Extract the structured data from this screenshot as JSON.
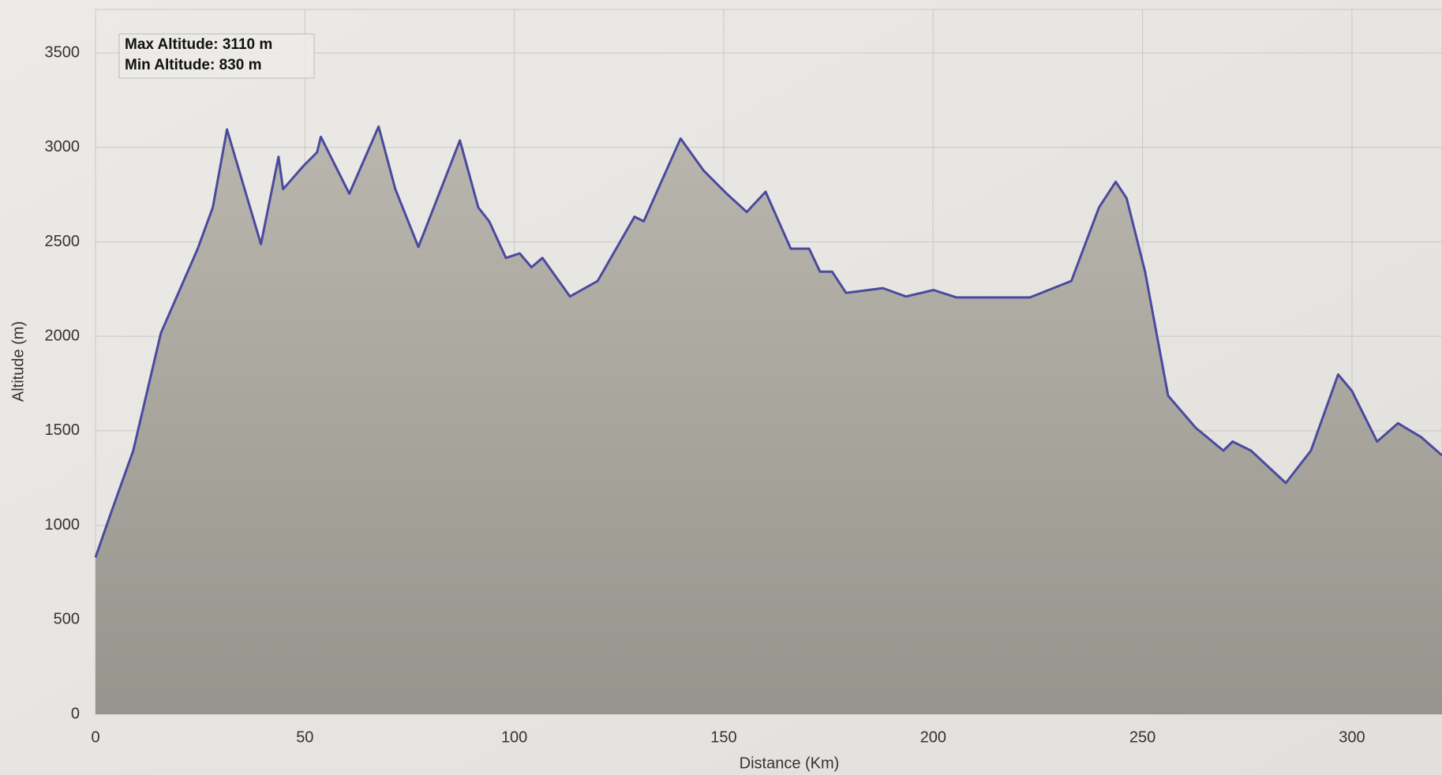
{
  "chart_data": {
    "type": "area-line",
    "xlabel": "Distance (Km)",
    "ylabel": "Altitude (m)",
    "annotations": [
      "Max Altitude: 3110 m",
      "Min Altitude: 830 m"
    ],
    "x": [
      0,
      3.5,
      9,
      15.6,
      24.4,
      28,
      31.4,
      34.3,
      39.5,
      43.7,
      44.8,
      49.6,
      52.9,
      53.8,
      56.2,
      60.6,
      67.6,
      71.6,
      77.1,
      87,
      91.4,
      94,
      98,
      101.3,
      104.1,
      106.7,
      113.3,
      119.9,
      128.7,
      130.9,
      139.7,
      145.2,
      150.7,
      155.5,
      160,
      166,
      170.4,
      173,
      175.9,
      179.2,
      188,
      193.5,
      200.1,
      205.6,
      223.1,
      233,
      239.6,
      243.6,
      246.2,
      250.6,
      256.1,
      262.7,
      269.3,
      271.5,
      275.9,
      284.2,
      290.2,
      296.7,
      300,
      306,
      311,
      316.5,
      321.5
    ],
    "series": [
      {
        "color": "#4a4a9e",
        "values": [
          830,
          1054,
          1395,
          2017,
          2464,
          2682,
          3095,
          2877,
          2488,
          2950,
          2779,
          2901,
          2974,
          3056,
          2950,
          2755,
          3110,
          2779,
          2473,
          3037,
          2682,
          2609,
          2415,
          2439,
          2366,
          2415,
          2211,
          2293,
          2633,
          2609,
          3047,
          2877,
          2755,
          2658,
          2765,
          2464,
          2464,
          2342,
          2342,
          2230,
          2255,
          2211,
          2245,
          2206,
          2206,
          2293,
          2682,
          2818,
          2731,
          2342,
          1686,
          1516,
          1395,
          1443,
          1395,
          1224,
          1395,
          1798,
          1711,
          1443,
          1540,
          1467,
          1370
        ]
      }
    ],
    "xlim": [
      0,
      321.5
    ],
    "ylim": [
      0,
      3730
    ],
    "xticks": [
      0,
      50,
      100,
      150,
      200,
      250,
      300
    ],
    "yticks": [
      0,
      500,
      1000,
      1500,
      2000,
      2500,
      3000,
      3500
    ],
    "grid": true
  }
}
